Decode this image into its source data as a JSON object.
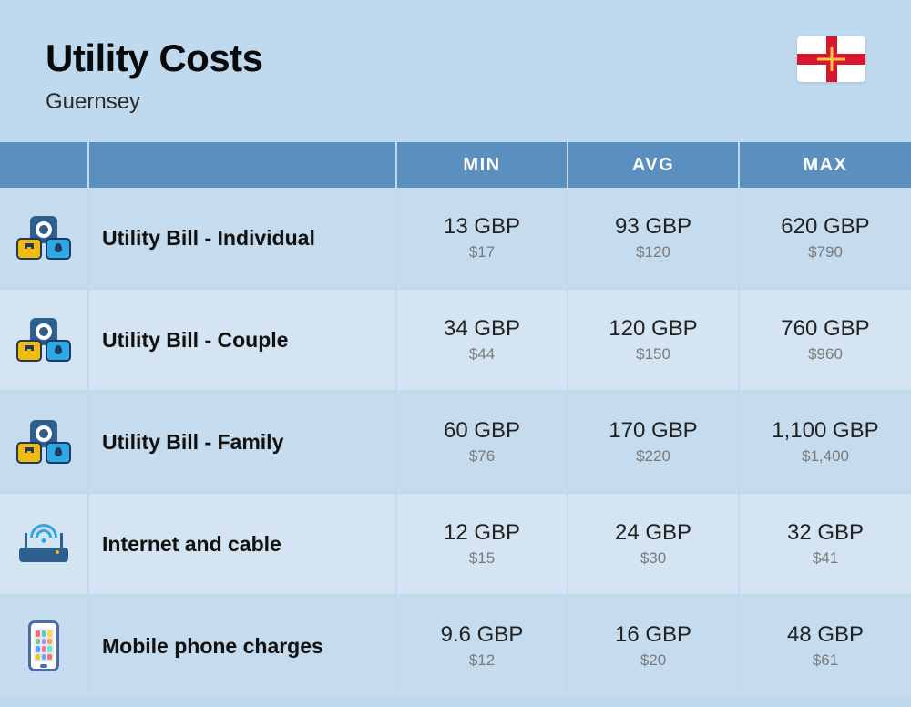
{
  "header": {
    "title": "Utility Costs",
    "subtitle": "Guernsey"
  },
  "table": {
    "columns": [
      "MIN",
      "AVG",
      "MAX"
    ],
    "rows": [
      {
        "icon": "utility",
        "label": "Utility Bill - Individual",
        "min_gbp": "13 GBP",
        "min_usd": "$17",
        "avg_gbp": "93 GBP",
        "avg_usd": "$120",
        "max_gbp": "620 GBP",
        "max_usd": "$790"
      },
      {
        "icon": "utility",
        "label": "Utility Bill - Couple",
        "min_gbp": "34 GBP",
        "min_usd": "$44",
        "avg_gbp": "120 GBP",
        "avg_usd": "$150",
        "max_gbp": "760 GBP",
        "max_usd": "$960"
      },
      {
        "icon": "utility",
        "label": "Utility Bill - Family",
        "min_gbp": "60 GBP",
        "min_usd": "$76",
        "avg_gbp": "170 GBP",
        "avg_usd": "$220",
        "max_gbp": "1,100 GBP",
        "max_usd": "$1,400"
      },
      {
        "icon": "router",
        "label": "Internet and cable",
        "min_gbp": "12 GBP",
        "min_usd": "$15",
        "avg_gbp": "24 GBP",
        "avg_usd": "$30",
        "max_gbp": "32 GBP",
        "max_usd": "$41"
      },
      {
        "icon": "phone",
        "label": "Mobile phone charges",
        "min_gbp": "9.6 GBP",
        "min_usd": "$12",
        "avg_gbp": "16 GBP",
        "avg_usd": "$20",
        "max_gbp": "48 GBP",
        "max_usd": "$61"
      }
    ]
  },
  "style": {
    "background_color": "#bfd9ef",
    "header_row_color": "#5b8fbf",
    "row_alt_colors": [
      "#c5dcef",
      "#d4e4f2"
    ],
    "title_fontsize": 42,
    "subtitle_fontsize": 24,
    "label_fontsize": 23,
    "gbp_fontsize": 24,
    "usd_fontsize": 17,
    "usd_color": "#7a7a7a"
  }
}
